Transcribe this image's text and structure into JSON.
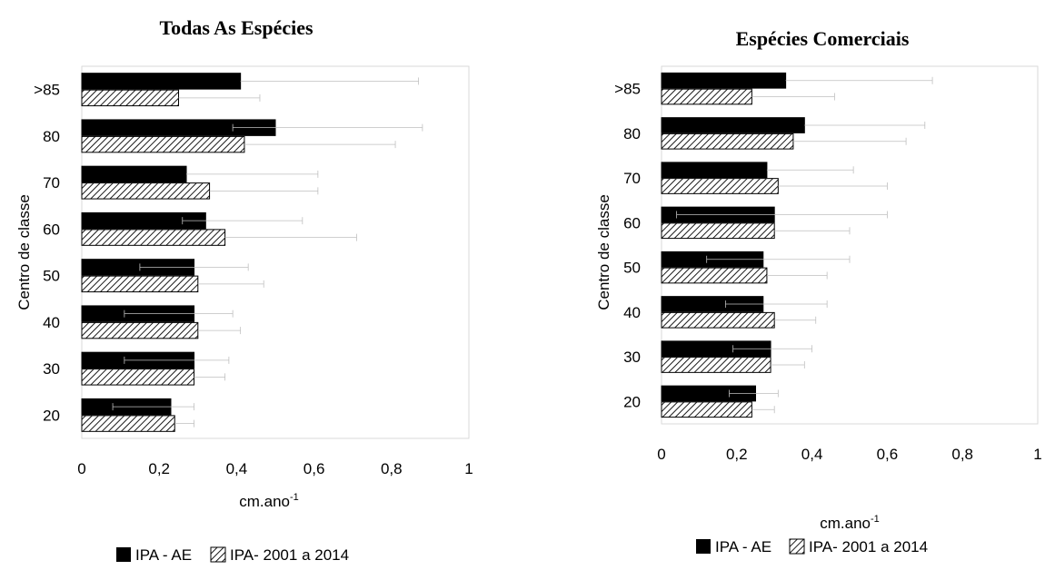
{
  "chart_data": [
    {
      "type": "bar",
      "orientation": "horizontal",
      "title": "Todas As Espécies",
      "xlabel": "cm.ano",
      "xlabel_superscript": "-1",
      "ylabel": "Centro de classe",
      "categories": [
        ">85",
        "80",
        "70",
        "60",
        "50",
        "40",
        "30",
        "20"
      ],
      "xlim": [
        0,
        1
      ],
      "xticks": [
        "0",
        "0,2",
        "0,4",
        "0,6",
        "0,8",
        "1"
      ],
      "grid": false,
      "legend_position": "bottom",
      "series": [
        {
          "name": "IPA - AE",
          "pattern": "solid",
          "color": "#000000",
          "values": [
            0.41,
            0.5,
            0.27,
            0.32,
            0.29,
            0.29,
            0.29,
            0.23
          ],
          "error_low": [
            0.41,
            0.39,
            0.27,
            0.26,
            0.15,
            0.11,
            0.11,
            0.08
          ],
          "error_high": [
            0.87,
            0.88,
            0.61,
            0.57,
            0.43,
            0.39,
            0.38,
            0.29
          ]
        },
        {
          "name": "IPA- 2001 a 2014",
          "pattern": "hatch",
          "color": "#000000",
          "values": [
            0.25,
            0.42,
            0.33,
            0.37,
            0.3,
            0.3,
            0.29,
            0.24
          ],
          "error_low": [
            0.25,
            0.42,
            0.33,
            0.37,
            0.3,
            0.3,
            0.29,
            0.24
          ],
          "error_high": [
            0.46,
            0.81,
            0.61,
            0.71,
            0.47,
            0.41,
            0.37,
            0.29
          ]
        }
      ]
    },
    {
      "type": "bar",
      "orientation": "horizontal",
      "title": "Espécies Comerciais",
      "xlabel": "cm.ano",
      "xlabel_superscript": "-1",
      "ylabel": "Centro de classe",
      "categories": [
        ">85",
        "80",
        "70",
        "60",
        "50",
        "40",
        "30",
        "20"
      ],
      "xlim": [
        0,
        1
      ],
      "xticks": [
        "0",
        "0,2",
        "0,4",
        "0,6",
        "0,8",
        "1"
      ],
      "grid": false,
      "legend_position": "bottom",
      "series": [
        {
          "name": "IPA - AE",
          "pattern": "solid",
          "color": "#000000",
          "values": [
            0.33,
            0.38,
            0.28,
            0.3,
            0.27,
            0.27,
            0.29,
            0.25
          ],
          "error_low": [
            0.33,
            0.38,
            0.28,
            0.04,
            0.12,
            0.17,
            0.19,
            0.18
          ],
          "error_high": [
            0.72,
            0.7,
            0.51,
            0.6,
            0.5,
            0.44,
            0.4,
            0.31
          ]
        },
        {
          "name": "IPA- 2001 a 2014",
          "pattern": "hatch",
          "color": "#000000",
          "values": [
            0.24,
            0.35,
            0.31,
            0.3,
            0.28,
            0.3,
            0.29,
            0.24
          ],
          "error_low": [
            0.24,
            0.35,
            0.31,
            0.3,
            0.28,
            0.3,
            0.29,
            0.24
          ],
          "error_high": [
            0.46,
            0.65,
            0.6,
            0.5,
            0.44,
            0.41,
            0.38,
            0.3
          ]
        }
      ]
    }
  ]
}
